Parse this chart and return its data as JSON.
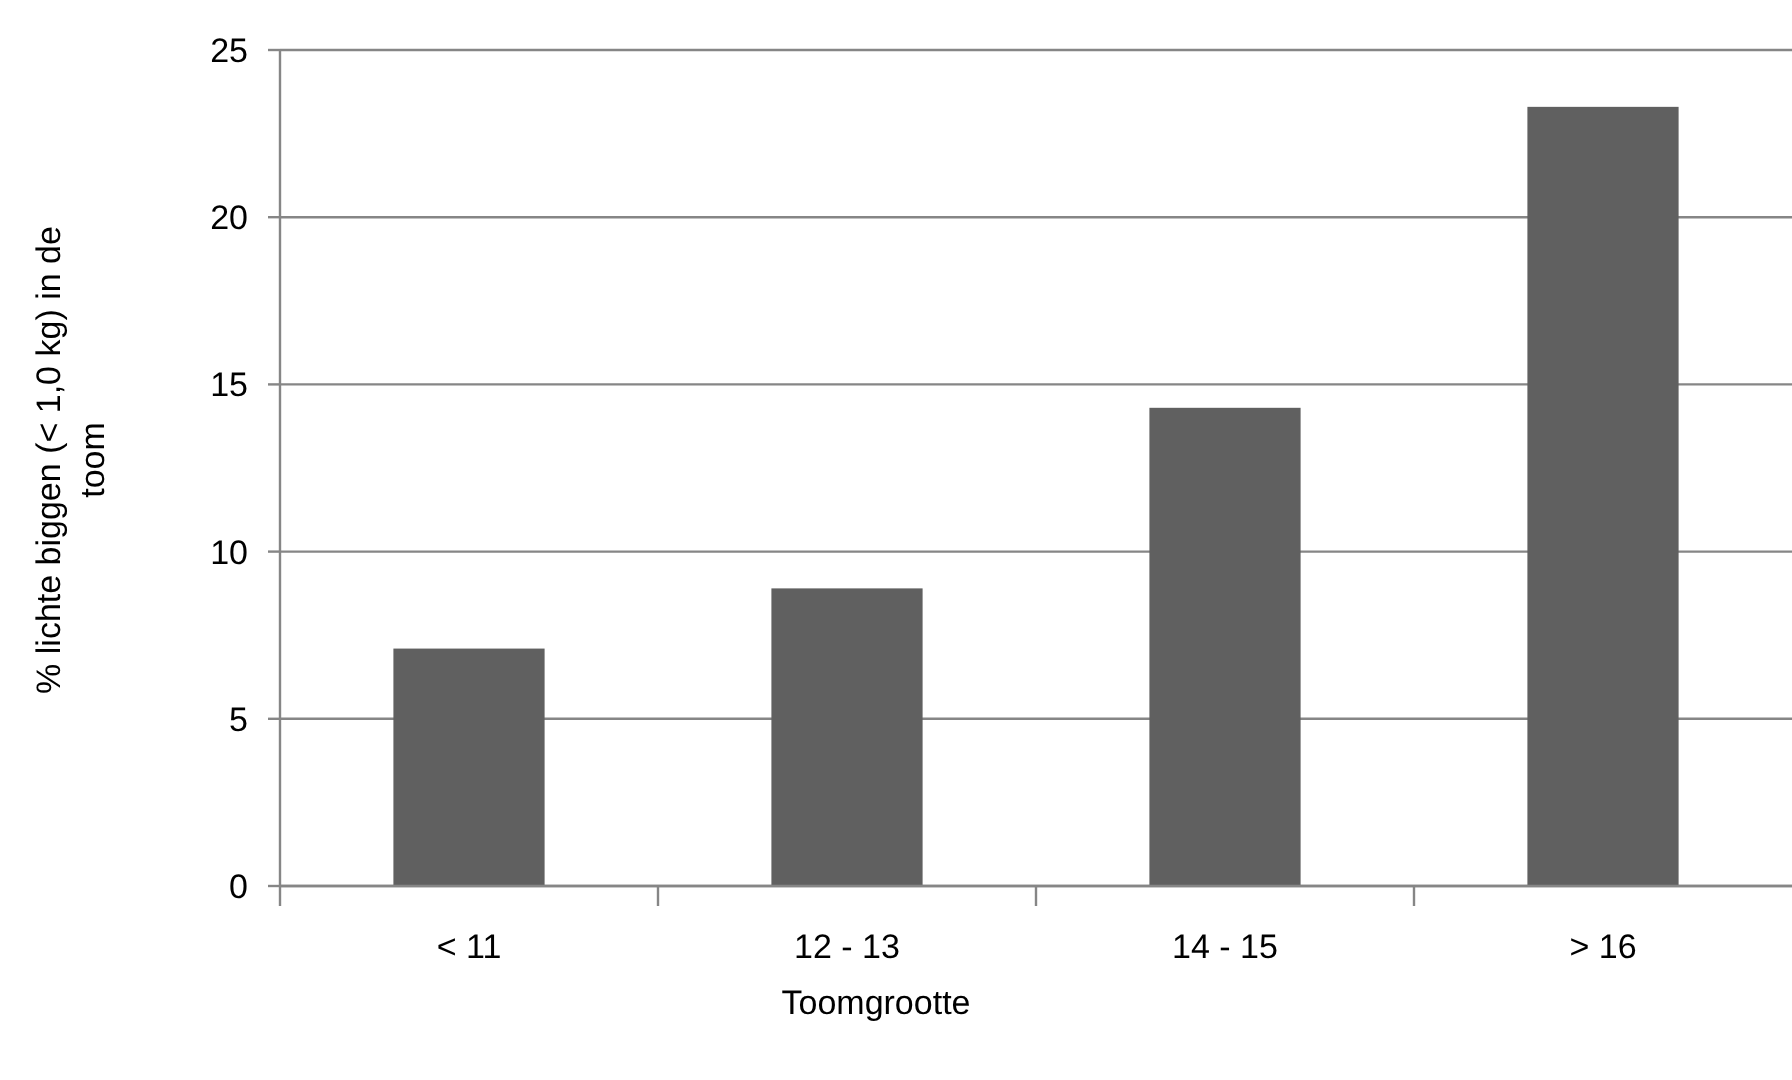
{
  "chart_data": {
    "type": "bar",
    "xlabel": "Toomgrootte",
    "ylabel": "% lichte biggen (< 1,0 kg) in de toom",
    "categories": [
      "< 11",
      "12 - 13",
      "14 - 15",
      "> 16"
    ],
    "values": [
      7.1,
      8.9,
      14.3,
      23.3
    ],
    "color": "#606060",
    "ylim": [
      0,
      25
    ],
    "yticks": [
      0,
      5,
      10,
      15,
      20,
      25
    ],
    "grid": "y"
  }
}
